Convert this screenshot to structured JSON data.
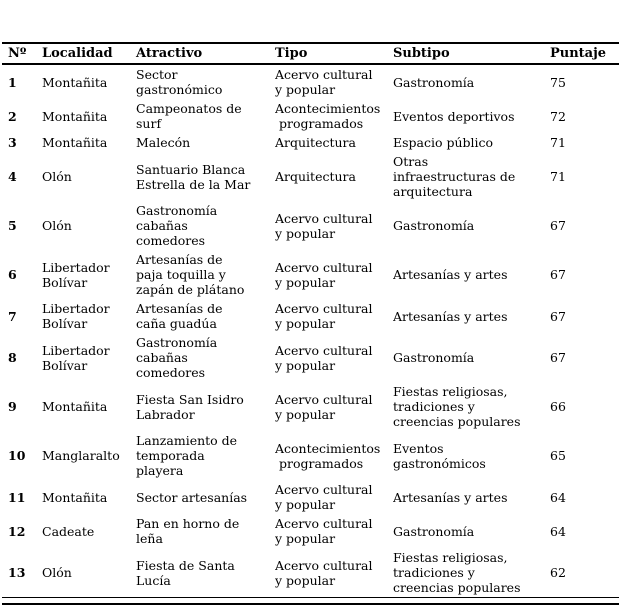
{
  "colors": {
    "text": "#000000",
    "background": "#ffffff",
    "rule": "#000000"
  },
  "table": {
    "columns": [
      {
        "key": "num",
        "label": "Nº"
      },
      {
        "key": "localidad",
        "label": "Localidad"
      },
      {
        "key": "atractivo",
        "label": "Atractivo"
      },
      {
        "key": "tipo",
        "label": "Tipo"
      },
      {
        "key": "subtipo",
        "label": "Subtipo"
      },
      {
        "key": "puntaje",
        "label": "Puntaje"
      }
    ],
    "rows": [
      {
        "num": "1",
        "localidad": "Montañita",
        "atractivo": "Sector\ngastronómico",
        "tipo": "Acervo cultural\ny popular",
        "subtipo": "Gastronomía",
        "puntaje": "75"
      },
      {
        "num": "2",
        "localidad": "Montañita",
        "atractivo": "Campeonatos de\nsurf",
        "tipo": "Acontecimientos\n programados",
        "subtipo": "Eventos deportivos",
        "puntaje": "72"
      },
      {
        "num": "3",
        "localidad": "Montañita",
        "atractivo": "Malecón",
        "tipo": "Arquitectura",
        "subtipo": "Espacio público",
        "puntaje": "71"
      },
      {
        "num": "4",
        "localidad": "Olón",
        "atractivo": "Santuario Blanca\nEstrella de la Mar",
        "tipo": "Arquitectura",
        "subtipo": "Otras\ninfraestructuras de\narquitectura",
        "puntaje": "71"
      },
      {
        "num": "5",
        "localidad": "Olón",
        "atractivo": "Gastronomía\ncabañas\ncomedores",
        "tipo": "Acervo cultural\ny popular",
        "subtipo": "Gastronomía",
        "puntaje": "67"
      },
      {
        "num": "6",
        "localidad": "Libertador\nBolívar",
        "atractivo": "Artesanías de\npaja toquilla y\nzapán de plátano",
        "tipo": "Acervo cultural\ny popular",
        "subtipo": "Artesanías y artes",
        "puntaje": "67"
      },
      {
        "num": "7",
        "localidad": "Libertador\nBolívar",
        "atractivo": "Artesanías de\ncaña guadúa",
        "tipo": "Acervo cultural\ny popular",
        "subtipo": "Artesanías y artes",
        "puntaje": "67"
      },
      {
        "num": "8",
        "localidad": "Libertador\nBolívar",
        "atractivo": "Gastronomía\ncabañas\ncomedores",
        "tipo": "Acervo cultural\ny popular",
        "subtipo": "Gastronomía",
        "puntaje": "67"
      },
      {
        "num": "9",
        "localidad": "Montañita",
        "atractivo": "Fiesta San Isidro\nLabrador",
        "tipo": "Acervo cultural\ny popular",
        "subtipo": "Fiestas religiosas,\ntradiciones y\ncreencias populares",
        "puntaje": "66"
      },
      {
        "num": "10",
        "localidad": "Manglaralto",
        "atractivo": "Lanzamiento de\ntemporada\nplayera",
        "tipo": "Acontecimientos\n programados",
        "subtipo": "Eventos\ngastronómicos",
        "puntaje": "65"
      },
      {
        "num": "11",
        "localidad": "Montañita",
        "atractivo": "Sector artesanías",
        "tipo": "Acervo cultural\ny popular",
        "subtipo": "Artesanías y artes",
        "puntaje": "64"
      },
      {
        "num": "12",
        "localidad": "Cadeate",
        "atractivo": "Pan en horno de\nleña",
        "tipo": "Acervo cultural\ny popular",
        "subtipo": "Gastronomía",
        "puntaje": "64"
      },
      {
        "num": "13",
        "localidad": "Olón",
        "atractivo": "Fiesta de Santa\nLucía",
        "tipo": "Acervo cultural\ny popular",
        "subtipo": "Fiestas religiosas,\ntradiciones y\ncreencias populares",
        "puntaje": "62"
      }
    ]
  }
}
